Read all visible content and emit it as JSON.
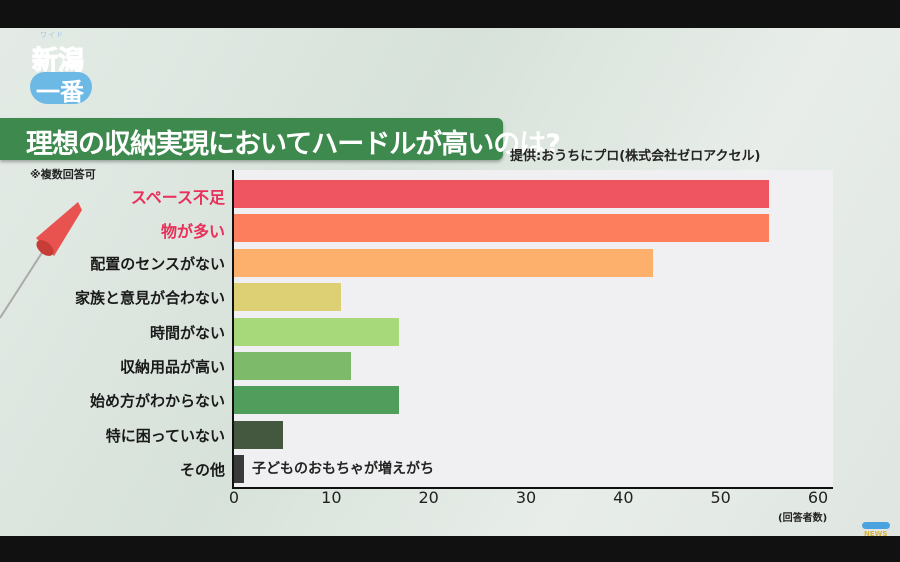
{
  "logo": {
    "small_text": "ワイド",
    "top": "新潟",
    "bottom": "一番"
  },
  "title": "理想の収納実現においてハードルが高いのは?",
  "source": "提供:おうちにプロ(株式会社ゼロアクセル)",
  "note": "※複数回答可",
  "broadcaster_logo": "NEWS",
  "chart_data": {
    "type": "bar",
    "orientation": "horizontal",
    "title": "理想の収納実現においてハードルが高いのは?",
    "xlabel": "(回答者数)",
    "ylabel": "",
    "xlim": [
      0,
      60
    ],
    "xticks": [
      0,
      10,
      20,
      30,
      40,
      50,
      60
    ],
    "grid": false,
    "categories": [
      "スペース不足",
      "物が多い",
      "配置のセンスがない",
      "家族と意見が合わない",
      "時間がない",
      "収納用品が高い",
      "始め方がわからない",
      "特に困っていない",
      "その他"
    ],
    "values": [
      55,
      55,
      43,
      11,
      17,
      12,
      17,
      5,
      1
    ],
    "highlighted": [
      "スペース不足",
      "物が多い"
    ],
    "colors": [
      "#ef5560",
      "#fd7e5c",
      "#fdaf6c",
      "#dccf74",
      "#a7d879",
      "#7dbb6a",
      "#519e5c",
      "#44583f",
      "#3a3a3a"
    ],
    "highlight_color": "#e8305a",
    "annotations": [
      {
        "category": "その他",
        "text": "子どものおもちゃが増えがち"
      }
    ]
  }
}
